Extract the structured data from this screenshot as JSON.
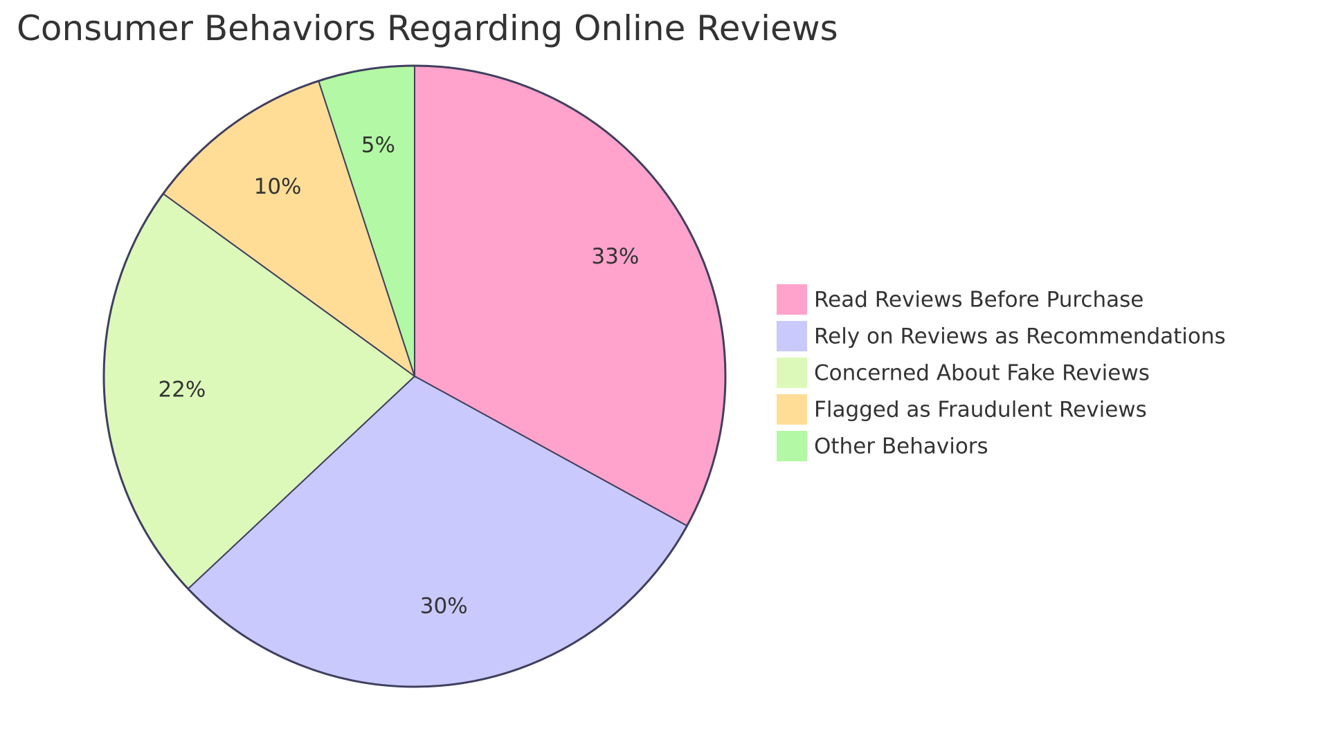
{
  "chart_data": {
    "type": "pie",
    "title": "Consumer Behaviors Regarding Online Reviews",
    "categories": [
      "Read Reviews Before Purchase",
      "Rely on Reviews as Recommendations",
      "Concerned About Fake Reviews",
      "Flagged as Fraudulent Reviews",
      "Other Behaviors"
    ],
    "values": [
      33,
      30,
      22,
      10,
      5
    ],
    "value_labels": [
      "33%",
      "30%",
      "22%",
      "10%",
      "5%"
    ],
    "colors": [
      "#ffa3cc",
      "#c9c9fd",
      "#dcf9b9",
      "#ffdd97",
      "#b3f8a4"
    ]
  }
}
